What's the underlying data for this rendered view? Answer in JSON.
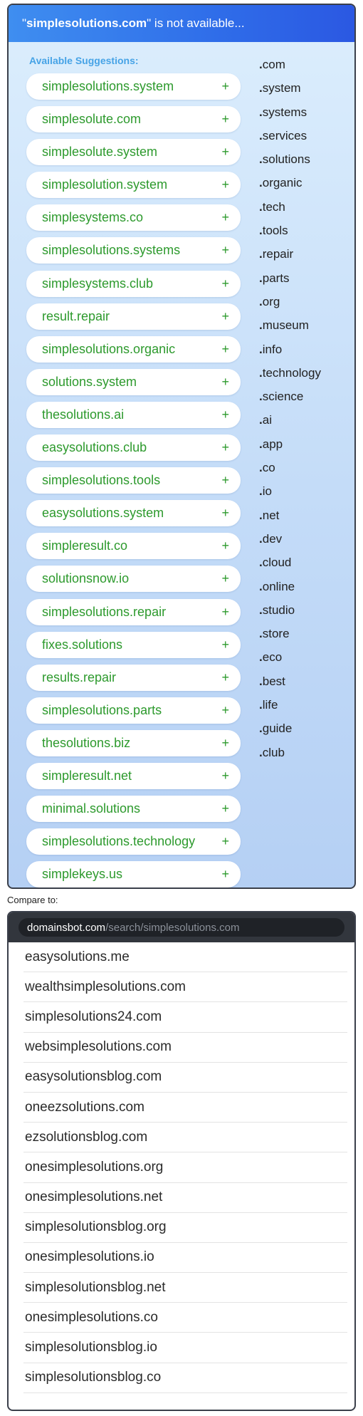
{
  "header": {
    "searched_domain": "simplesolutions.com",
    "suffix": " is not available..."
  },
  "suggestions": {
    "title": "Available Suggestions:",
    "add_symbol": "+",
    "items": [
      "simplesolutions.system",
      "simplesolute.com",
      "simplesolute.system",
      "simplesolution.system",
      "simplesystems.co",
      "simplesolutions.systems",
      "simplesystems.club",
      "result.repair",
      "simplesolutions.organic",
      "solutions.system",
      "thesolutions.ai",
      "easysolutions.club",
      "simplesolutions.tools",
      "easysolutions.system",
      "simpleresult.co",
      "solutionsnow.io",
      "simplesolutions.repair",
      "fixes.solutions",
      "results.repair",
      "simplesolutions.parts",
      "thesolutions.biz",
      "simpleresult.net",
      "minimal.solutions",
      "simplesolutions.technology",
      "simplekeys.us"
    ]
  },
  "tlds": [
    "com",
    "system",
    "systems",
    "services",
    "solutions",
    "organic",
    "tech",
    "tools",
    "repair",
    "parts",
    "org",
    "museum",
    "info",
    "technology",
    "science",
    "ai",
    "app",
    "co",
    "io",
    "net",
    "dev",
    "cloud",
    "online",
    "studio",
    "store",
    "eco",
    "best",
    "life",
    "guide",
    "club"
  ],
  "compare": {
    "label": "Compare to:",
    "url_domain": "domainsbot.com",
    "url_path": "/search/simplesolutions.com",
    "results": [
      "easysolutions.me",
      "wealthsimplesolutions.com",
      "simplesolutions24.com",
      "websimplesolutions.com",
      "easysolutionsblog.com",
      "oneezsolutions.com",
      "ezsolutionsblog.com",
      "onesimplesolutions.org",
      "onesimplesolutions.net",
      "simplesolutionsblog.org",
      "onesimplesolutions.io",
      "simplesolutionsblog.net",
      "onesimplesolutions.co",
      "simplesolutionsblog.io",
      "simplesolutionsblog.co"
    ]
  },
  "colors": {
    "header_gradient_start": "#3f8ef0",
    "header_gradient_end": "#2b58e2",
    "suggestion_text": "#2d9a2d",
    "suggestion_title": "#46a3e6",
    "browser_bar": "#32363d"
  }
}
